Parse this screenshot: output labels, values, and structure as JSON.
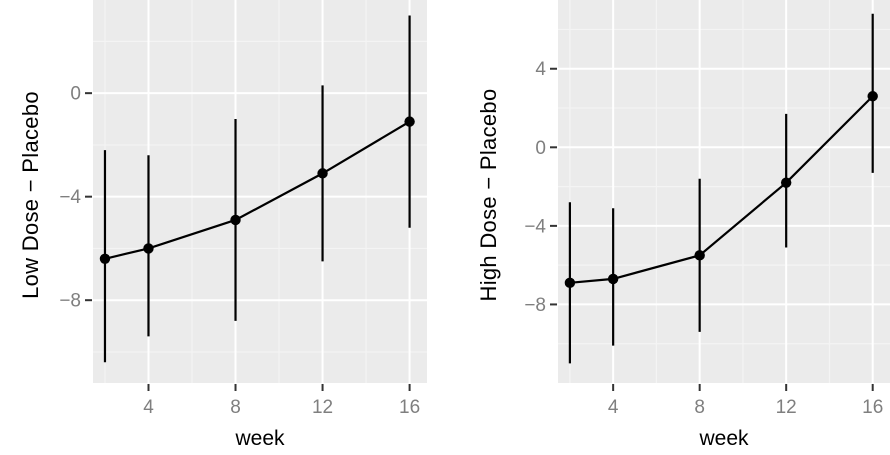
{
  "style": {
    "page_bg": "#ffffff",
    "panel_bg": "#ebebeb",
    "grid_major": "#ffffff",
    "grid_minor": "#f4f4f4",
    "series_color": "#000000",
    "tick_color": "#333333",
    "tick_label_color": "#7f7f7f",
    "axis_title_color": "#000000"
  },
  "chart_data": [
    {
      "type": "line",
      "error_bars": true,
      "title": "",
      "xlabel": "week",
      "ylabel": "Low Dose − Placebo",
      "x": [
        2,
        4,
        8,
        12,
        16
      ],
      "series": [
        {
          "name": "estimate",
          "values": [
            -6.4,
            -6.0,
            -4.9,
            -3.1,
            -1.1
          ]
        },
        {
          "name": "lower",
          "values": [
            -10.4,
            -9.4,
            -8.8,
            -6.5,
            -5.2
          ]
        },
        {
          "name": "upper",
          "values": [
            -2.2,
            -2.4,
            -1.0,
            0.3,
            3.0
          ]
        }
      ],
      "xlim": [
        1.45,
        16.8
      ],
      "ylim": [
        -11.2,
        3.6
      ],
      "x_major_ticks": [
        4,
        8,
        12,
        16
      ],
      "x_minor_ticks": [
        2,
        6,
        10,
        14
      ],
      "y_major_ticks": [
        0,
        -4,
        -8
      ],
      "y_minor_ticks": [
        2,
        -2,
        -6,
        -10
      ],
      "grid": "major+minor",
      "legend": "none"
    },
    {
      "type": "line",
      "error_bars": true,
      "title": "",
      "xlabel": "week",
      "ylabel": "High Dose − Placebo",
      "x": [
        2,
        4,
        8,
        12,
        16
      ],
      "series": [
        {
          "name": "estimate",
          "values": [
            -6.9,
            -6.7,
            -5.5,
            -1.8,
            2.6
          ]
        },
        {
          "name": "lower",
          "values": [
            -11.0,
            -10.1,
            -9.4,
            -5.1,
            -1.3
          ]
        },
        {
          "name": "upper",
          "values": [
            -2.8,
            -3.1,
            -1.6,
            1.7,
            6.8
          ]
        }
      ],
      "xlim": [
        1.45,
        16.8
      ],
      "ylim": [
        -12.0,
        7.5
      ],
      "x_major_ticks": [
        4,
        8,
        12,
        16
      ],
      "x_minor_ticks": [
        2,
        6,
        10,
        14
      ],
      "y_major_ticks": [
        4,
        0,
        -4,
        -8
      ],
      "y_minor_ticks": [
        6,
        2,
        -2,
        -6,
        -10
      ],
      "grid": "major+minor",
      "legend": "none"
    }
  ]
}
